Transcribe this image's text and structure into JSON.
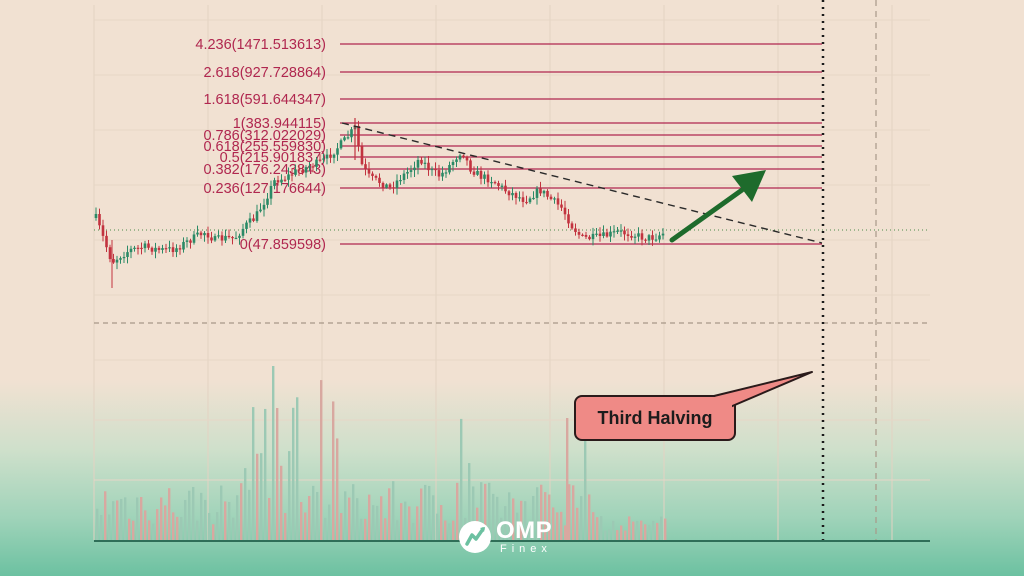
{
  "chart_data": {
    "type": "candlestick",
    "fibonacci_levels": [
      {
        "ratio": "4.236",
        "price": "1471.513613",
        "label": "4.236(1471.513613)"
      },
      {
        "ratio": "2.618",
        "price": "927.728864",
        "label": "2.618(927.728864)"
      },
      {
        "ratio": "1.618",
        "price": "591.644347",
        "label": "1.618(591.644347)"
      },
      {
        "ratio": "1",
        "price": "383.944115",
        "label": "1(383.944115)"
      },
      {
        "ratio": "0.786",
        "price": "312.022029",
        "label": "0.786(312.022029)"
      },
      {
        "ratio": "0.618",
        "price": "255.559830",
        "label": "0.618(255.559830)"
      },
      {
        "ratio": "0.5",
        "price": "215.901837",
        "label": "0.5(215.901837)"
      },
      {
        "ratio": "0.382",
        "price": "176.243843",
        "label": "0.382(176.243843)"
      },
      {
        "ratio": "0.236",
        "price": "127.176644",
        "label": "0.236(127.176644)"
      },
      {
        "ratio": "0",
        "price": "47.859598",
        "label": "0(47.859598)"
      }
    ],
    "annotations": [
      "Third Halving"
    ],
    "trend": "projected upward move after consolidation",
    "grid": true
  },
  "callout": {
    "text": "Third Halving"
  },
  "brand": {
    "name": "OMP",
    "sub": "Finex"
  },
  "colors": {
    "fib_line": "#b0274f",
    "up_candle": "#2b8a66",
    "down_candle": "#c2333f",
    "arrow": "#1e6b2c",
    "callout_fill": "#ef8a86",
    "trendline": "#2a2a2a"
  }
}
